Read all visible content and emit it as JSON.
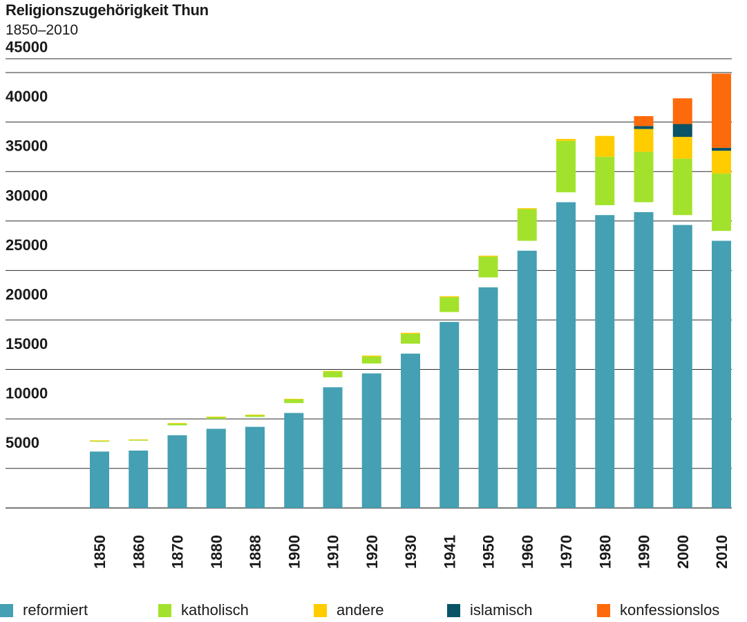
{
  "header": {
    "title": "Religionszugehörigkeit Thun",
    "subtitle": "1850–2010"
  },
  "colors": {
    "reformiert": "#44a0b2",
    "katholisch": "#a3e22c",
    "andere": "#ffcc00",
    "islamisch": "#0a5366",
    "konfessionslos": "#fd6a0b",
    "grid": "#2b2b2b"
  },
  "legend": [
    {
      "label": "reformiert",
      "color": "#44a0b2"
    },
    {
      "label": "katholisch",
      "color": "#a3e22c"
    },
    {
      "label": "andere",
      "color": "#ffcc00"
    },
    {
      "label": "islamisch",
      "color": "#0a5366"
    },
    {
      "label": "konfessionslos",
      "color": "#fd6a0b"
    }
  ],
  "chart_data": {
    "type": "bar",
    "stacked": true,
    "title": "Religionszugehörigkeit Thun",
    "subtitle": "1850–2010",
    "ylim": [
      1000,
      46400
    ],
    "y_ticks": [
      5000,
      10000,
      15000,
      20000,
      25000,
      30000,
      35000,
      40000,
      45000
    ],
    "y_tick_labels": [
      "5000",
      "10000",
      "15000",
      "20000",
      "25000",
      "30000",
      "35000",
      "40000",
      "45000"
    ],
    "grid": true,
    "legend_position": "bottom",
    "categories": [
      "1850",
      "1860",
      "1870",
      "1880",
      "1888",
      "1900",
      "1910",
      "1920",
      "1930",
      "1941",
      "1950",
      "1960",
      "1970",
      "1980",
      "1990",
      "2000",
      "2010"
    ],
    "series": [
      {
        "name": "reformiert",
        "color": "#44a0b2",
        "values": [
          6700,
          6800,
          8350,
          9000,
          9200,
          10600,
          13200,
          14600,
          16600,
          19800,
          23300,
          27000,
          31900,
          30600,
          30900,
          29600,
          28000
        ]
      },
      {
        "name": "katholisch",
        "color": "#a3e22c",
        "values": [
          100,
          100,
          200,
          200,
          200,
          400,
          600,
          700,
          1000,
          1500,
          2100,
          3200,
          5200,
          4900,
          5100,
          5700,
          5800
        ]
      },
      {
        "name": "andere",
        "color": "#ffcc00",
        "values": [
          30,
          30,
          30,
          30,
          30,
          30,
          50,
          100,
          100,
          100,
          100,
          100,
          200,
          2100,
          2300,
          2200,
          2300
        ]
      },
      {
        "name": "islamisch",
        "color": "#0a5366",
        "values": [
          0,
          0,
          0,
          0,
          0,
          0,
          0,
          0,
          0,
          0,
          0,
          0,
          0,
          0,
          300,
          1300,
          300
        ]
      },
      {
        "name": "konfessionslos",
        "color": "#fd6a0b",
        "values": [
          0,
          0,
          0,
          0,
          0,
          0,
          0,
          0,
          0,
          0,
          0,
          0,
          0,
          0,
          1000,
          2600,
          7500
        ]
      }
    ]
  }
}
